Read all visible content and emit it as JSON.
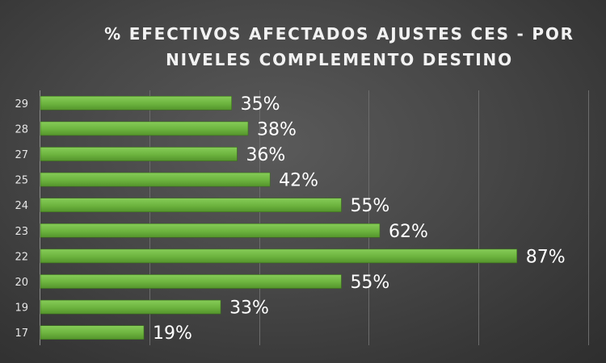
{
  "chart": {
    "title_line1": "% EFECTIVOS AFECTADOS AJUSTES CES - POR",
    "title_line2": "NIVELES COMPLEMENTO DESTINO"
  },
  "chart_data": {
    "type": "bar",
    "orientation": "horizontal",
    "title": "% EFECTIVOS AFECTADOS AJUSTES CES - POR NIVELES COMPLEMENTO DESTINO",
    "categories": [
      "29",
      "28",
      "27",
      "25",
      "24",
      "23",
      "22",
      "20",
      "19",
      "17"
    ],
    "values": [
      35,
      38,
      36,
      42,
      55,
      62,
      87,
      55,
      33,
      19
    ],
    "data_labels": [
      "35%",
      "38%",
      "36%",
      "42%",
      "55%",
      "62%",
      "87%",
      "55%",
      "33%",
      "19%"
    ],
    "value_unit": "%",
    "xlim": [
      0,
      100
    ],
    "grid": true,
    "legend": "none",
    "bar_color": "#6cb33e",
    "background_color": "#474747",
    "text_color": "#ffffff"
  }
}
